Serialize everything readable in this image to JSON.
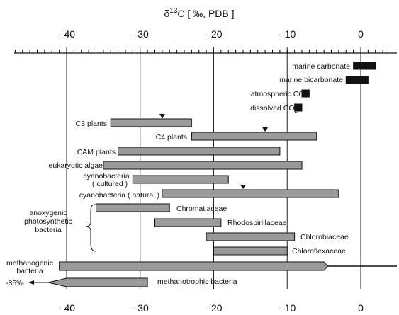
{
  "chart_data": {
    "type": "bar",
    "orientation": "horizontal-range",
    "title": "δ13C [ ‰, PDB ]",
    "x_ticks": [
      "- 40",
      "- 30",
      "- 20",
      "- 10",
      "0"
    ],
    "x_tick_values": [
      -40,
      -30,
      -20,
      -10,
      0
    ],
    "xlim": [
      -48,
      5
    ],
    "grid": "vertical",
    "series": [
      {
        "name": "marine carbonate",
        "x_start": -1,
        "x_end": 2,
        "style": "black"
      },
      {
        "name": "marine bicarbonate",
        "x_start": -2,
        "x_end": 1,
        "style": "black"
      },
      {
        "name": "atmospheric CO2",
        "x_start": -8,
        "x_end": -7,
        "style": "black"
      },
      {
        "name": "dissolved CO2",
        "x_start": -9,
        "x_end": -8,
        "style": "black"
      },
      {
        "name": "C3 plants",
        "x_start": -34,
        "x_end": -23,
        "marker": -27
      },
      {
        "name": "C4 plants",
        "x_start": -23,
        "x_end": -6,
        "marker": -13
      },
      {
        "name": "CAM plants",
        "x_start": -33,
        "x_end": -11
      },
      {
        "name": "eukaryotic algae",
        "x_start": -35,
        "x_end": -8
      },
      {
        "name": "cyanobacteria ( cultured )",
        "x_start": -31,
        "x_end": -18
      },
      {
        "name": "cyanobacteria ( natural )",
        "x_start": -27,
        "x_end": -3,
        "marker": -16
      },
      {
        "name": "Chromatiaceae",
        "x_start": -36,
        "x_end": -26
      },
      {
        "name": "Rhodospirillaceae",
        "x_start": -28,
        "x_end": -19
      },
      {
        "name": "Chlorobiaceae",
        "x_start": -21,
        "x_end": -9
      },
      {
        "name": "Chloroflexaceae",
        "x_start": -20,
        "x_end": -10
      },
      {
        "name": "methanogenic bacteria",
        "x_start": -41,
        "x_end": 5,
        "style": "tapered-right"
      },
      {
        "name": "methanotrophic bacteria",
        "x_start": -43,
        "x_end": -29,
        "style": "tapered-left"
      }
    ],
    "group_label": "anoxygenic photosynthetic bacteria",
    "annotation": "-85‰"
  },
  "labels": {
    "title_main": "δ",
    "title_sup": "13",
    "title_rest": "C [ ‰, PDB ]",
    "marine_carbonate": "marine carbonate",
    "marine_bicarbonate": "marine bicarbonate",
    "atmospheric_co2": "atmospheric CO",
    "dissolved_co2": "dissolved CO",
    "sub2": "2",
    "c3": "C3 plants",
    "c4": "C4 plants",
    "cam": "CAM plants",
    "euk": "eukaryotic algae",
    "cyano_c1": "cyanobacteria",
    "cyano_c2": "( cultured )",
    "cyano_n": "cyanobacteria ( natural )",
    "group1": "anoxygenic",
    "group2": "photosynthetic",
    "group3": "bacteria",
    "chromatiaceae": "Chromatiaceae",
    "rhodospirillaceae": "Rhodospirillaceae",
    "chlorobiaceae": "Chlorobiaceae",
    "chloroflexaceae": "Chloroflexaceae",
    "methanogenic1": "methanogenic",
    "methanogenic2": "bacteria",
    "methanotrophic": "methanotrophic bacteria",
    "arrow85": "-85‰"
  }
}
